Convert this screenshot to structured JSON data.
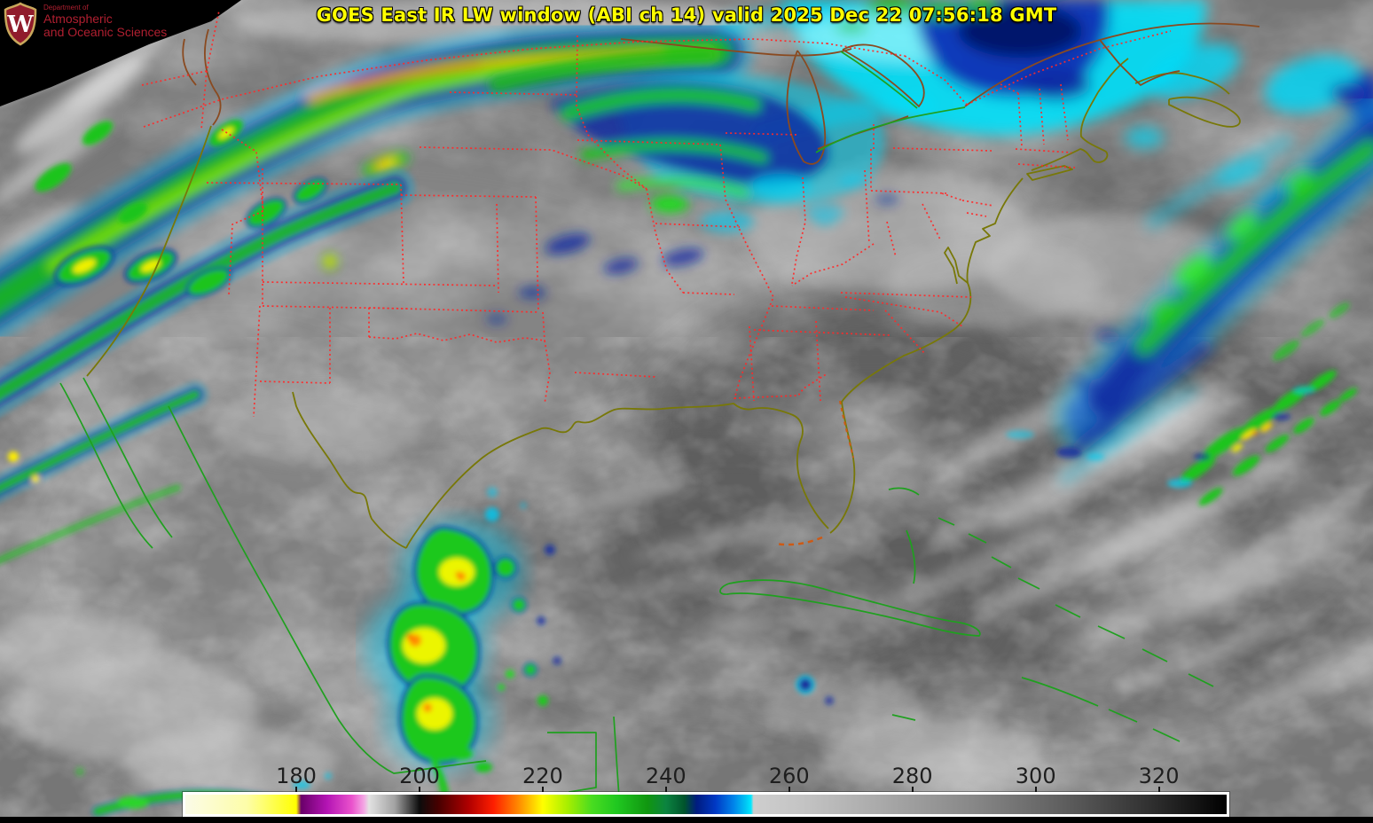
{
  "header": {
    "title": "GOES East IR LW window (ABI ch 14) valid 2025 Dec 22 07:56:18 GMT",
    "title_color": "#ffff00"
  },
  "logo": {
    "department_label": "Department of",
    "line1": "Atmospheric",
    "line2": "and Oceanic Sciences",
    "crest_letter": "W",
    "text_color": "#b01f30",
    "crest_red": "#901c2c",
    "crest_gold": "#c9a85c"
  },
  "colorbar": {
    "range_min": 162,
    "range_max": 331,
    "frame_color": "#ffffff",
    "label_color": "#1e1e1e",
    "ticks": [
      {
        "label": "180",
        "t": 180
      },
      {
        "label": "200",
        "t": 200
      },
      {
        "label": "220",
        "t": 220
      },
      {
        "label": "240",
        "t": 240
      },
      {
        "label": "260",
        "t": 260
      },
      {
        "label": "280",
        "t": 280
      },
      {
        "label": "300",
        "t": 300
      },
      {
        "label": "320",
        "t": 320
      }
    ],
    "stops": [
      {
        "t": 162,
        "color": "#fbfbe8"
      },
      {
        "t": 172,
        "color": "#fdfda8"
      },
      {
        "t": 180,
        "color": "#ffff00"
      },
      {
        "t": 180.8,
        "color": "#6a006a"
      },
      {
        "t": 185,
        "color": "#b414b4"
      },
      {
        "t": 189,
        "color": "#ea52cc"
      },
      {
        "t": 191,
        "color": "#f4a8e4"
      },
      {
        "t": 191.8,
        "color": "#e2e2e2"
      },
      {
        "t": 196,
        "color": "#a2a2a2"
      },
      {
        "t": 200,
        "color": "#0c0c0c"
      },
      {
        "t": 203,
        "color": "#460000"
      },
      {
        "t": 208,
        "color": "#b00000"
      },
      {
        "t": 212,
        "color": "#fe1e00"
      },
      {
        "t": 216,
        "color": "#ff8800"
      },
      {
        "t": 220,
        "color": "#ffff00"
      },
      {
        "t": 224,
        "color": "#a8ee00"
      },
      {
        "t": 228,
        "color": "#48dc20"
      },
      {
        "t": 232,
        "color": "#20c820"
      },
      {
        "t": 237,
        "color": "#109610"
      },
      {
        "t": 240,
        "color": "#0c8440"
      },
      {
        "t": 243,
        "color": "#00542c"
      },
      {
        "t": 245,
        "color": "#001c80"
      },
      {
        "t": 248,
        "color": "#0038c4"
      },
      {
        "t": 251,
        "color": "#0084ea"
      },
      {
        "t": 253,
        "color": "#00c8f4"
      },
      {
        "t": 253.8,
        "color": "#00e8ff"
      },
      {
        "t": 254.2,
        "color": "#cecece"
      },
      {
        "t": 262,
        "color": "#c4c4c4"
      },
      {
        "t": 275,
        "color": "#a9a9a9"
      },
      {
        "t": 290,
        "color": "#878787"
      },
      {
        "t": 305,
        "color": "#5d5d5d"
      },
      {
        "t": 318,
        "color": "#323232"
      },
      {
        "t": 326,
        "color": "#141414"
      },
      {
        "t": 331,
        "color": "#000000"
      }
    ]
  },
  "map": {
    "overlay_colors": {
      "state_borders_dotted": "#ff2a2a",
      "us_coastline": "#787808",
      "international_coastlines": "#1fa01f",
      "lakes_rivers": "#8a4a20"
    }
  }
}
